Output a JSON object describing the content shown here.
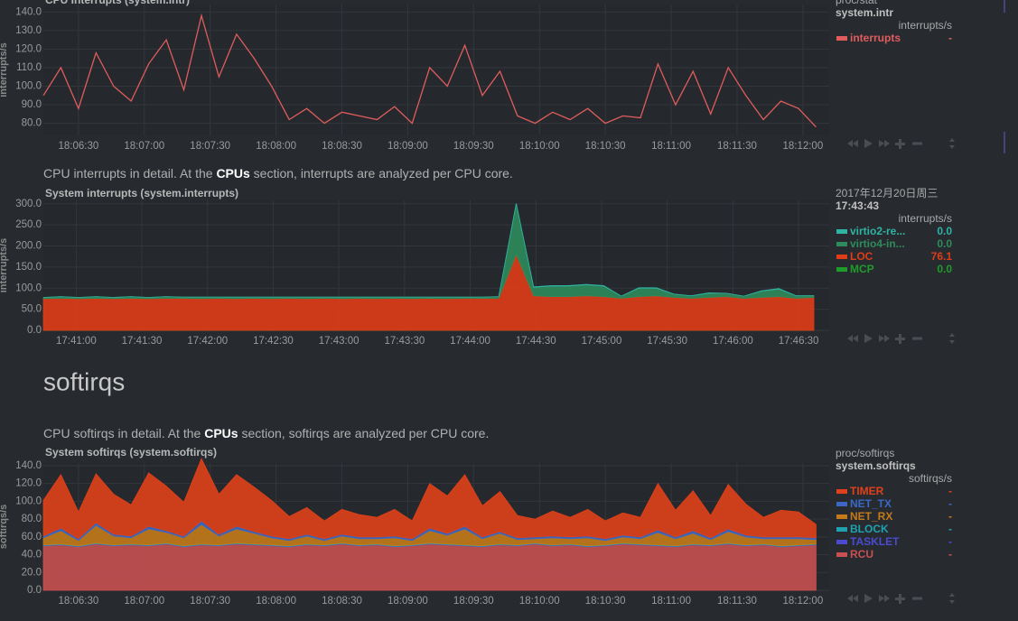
{
  "section_heading": "softirqs",
  "chart_data": [
    {
      "type": "line",
      "title": "CPU Interrupts (system.intr)",
      "ylabel": "interrupts/s",
      "source": "proc/stat",
      "chart_id": "system.intr",
      "units": "interrupts/s",
      "grid": true,
      "x": [
        "18:06:14",
        "18:06:22",
        "18:06:30",
        "18:06:38",
        "18:06:46",
        "18:06:54",
        "18:07:02",
        "18:07:10",
        "18:07:18",
        "18:07:26",
        "18:07:34",
        "18:07:42",
        "18:07:50",
        "18:07:58",
        "18:08:06",
        "18:08:14",
        "18:08:22",
        "18:08:30",
        "18:08:38",
        "18:08:46",
        "18:08:54",
        "18:09:02",
        "18:09:10",
        "18:09:18",
        "18:09:26",
        "18:09:34",
        "18:09:42",
        "18:09:50",
        "18:09:58",
        "18:10:06",
        "18:10:14",
        "18:10:22",
        "18:10:30",
        "18:10:38",
        "18:10:46",
        "18:10:54",
        "18:11:02",
        "18:11:10",
        "18:11:18",
        "18:11:26",
        "18:11:34",
        "18:11:42",
        "18:11:50",
        "18:11:58",
        "18:12:06"
      ],
      "xlim": [
        "18:06:14",
        "18:12:12"
      ],
      "xticks": [
        "18:06:30",
        "18:07:00",
        "18:07:30",
        "18:08:00",
        "18:08:30",
        "18:09:00",
        "18:09:30",
        "18:10:00",
        "18:10:30",
        "18:11:00",
        "18:11:30",
        "18:12:00"
      ],
      "ylim": [
        73.5,
        144
      ],
      "yticks": [
        {
          "value": 80,
          "label": "80.0"
        },
        {
          "value": 90,
          "label": "90.0"
        },
        {
          "value": 100,
          "label": "100.0"
        },
        {
          "value": 110,
          "label": "110.0"
        },
        {
          "value": 120,
          "label": "120.0"
        },
        {
          "value": 130,
          "label": "130.0"
        },
        {
          "value": 140,
          "label": "140.0"
        }
      ],
      "series": [
        {
          "name": "interrupts",
          "color": "#e05c5c",
          "legend_value": "-",
          "values": [
            95,
            110,
            88,
            118,
            100,
            92,
            112,
            125,
            98,
            138,
            105,
            128,
            115,
            100,
            82,
            88,
            80,
            86,
            84,
            82,
            89,
            80,
            110,
            100,
            122,
            95,
            108,
            84,
            80,
            86,
            82,
            88,
            80,
            84,
            83,
            112,
            90,
            108,
            85,
            110,
            95,
            82,
            92,
            88,
            78
          ]
        }
      ]
    },
    {
      "type": "area",
      "stacked": true,
      "title": "System interrupts (system.interrupts)",
      "ylabel": "interrupts/s",
      "desc_before": "CPU interrupts in detail. At the ",
      "desc_link": "CPUs",
      "desc_after": " section, interrupts are analyzed per CPU core.",
      "date": "2017年12月20日周三",
      "time": "17:43:43",
      "units": "interrupts/s",
      "grid": true,
      "x": [
        "17:40:45",
        "17:40:53",
        "17:41:01",
        "17:41:09",
        "17:41:17",
        "17:41:25",
        "17:41:33",
        "17:41:41",
        "17:41:49",
        "17:41:57",
        "17:42:05",
        "17:42:13",
        "17:42:21",
        "17:42:29",
        "17:42:37",
        "17:42:45",
        "17:42:53",
        "17:43:01",
        "17:43:09",
        "17:43:17",
        "17:43:25",
        "17:43:33",
        "17:43:41",
        "17:43:49",
        "17:43:57",
        "17:44:05",
        "17:44:13",
        "17:44:21",
        "17:44:29",
        "17:44:37",
        "17:44:45",
        "17:44:53",
        "17:45:01",
        "17:45:09",
        "17:45:17",
        "17:45:25",
        "17:45:33",
        "17:45:41",
        "17:45:49",
        "17:45:57",
        "17:46:05",
        "17:46:13",
        "17:46:21",
        "17:46:29",
        "17:46:37"
      ],
      "xlim": [
        "17:40:45",
        "17:46:44"
      ],
      "xticks": [
        "17:41:00",
        "17:41:30",
        "17:42:00",
        "17:42:30",
        "17:43:00",
        "17:43:30",
        "17:44:00",
        "17:44:30",
        "17:45:00",
        "17:45:30",
        "17:46:00",
        "17:46:30"
      ],
      "ylim": [
        0,
        308
      ],
      "yticks": [
        {
          "value": 0,
          "label": "0.0"
        },
        {
          "value": 50,
          "label": "50.0"
        },
        {
          "value": 100,
          "label": "100.0"
        },
        {
          "value": 150,
          "label": "150.0"
        },
        {
          "value": 200,
          "label": "200.0"
        },
        {
          "value": 250,
          "label": "250.0"
        },
        {
          "value": 300,
          "label": "300.0"
        }
      ],
      "series": [
        {
          "name": "virtio2-re...",
          "color": "#2fb3a3",
          "legend_value": "0.0",
          "values": [
            0,
            0,
            0,
            0,
            0,
            0,
            0,
            0,
            0,
            0,
            0,
            0,
            0,
            0,
            0,
            0,
            0,
            0,
            0,
            0,
            0,
            0,
            0,
            0,
            0,
            0,
            0,
            1,
            1,
            1,
            1,
            1,
            1,
            0,
            1,
            1,
            0,
            0,
            1,
            0,
            0,
            1,
            1,
            0,
            0
          ]
        },
        {
          "name": "virtio4-in...",
          "color": "#2e8b5c",
          "legend_value": "0.0",
          "values": [
            3,
            4,
            3,
            4,
            3,
            4,
            3,
            4,
            3,
            4,
            3,
            4,
            3,
            4,
            3,
            4,
            3,
            4,
            3,
            4,
            3,
            4,
            3,
            4,
            3,
            3,
            4,
            120,
            20,
            25,
            25,
            26,
            25,
            5,
            20,
            18,
            8,
            6,
            10,
            8,
            5,
            15,
            18,
            6,
            4
          ]
        },
        {
          "name": "LOC",
          "color": "#e03c18",
          "legend_value": "76.1",
          "values": [
            75,
            76,
            75,
            76,
            75,
            76,
            75,
            76,
            76,
            75,
            76,
            75,
            76,
            75,
            76,
            75,
            76,
            75,
            76,
            75,
            76,
            75,
            76,
            75,
            76,
            76,
            76,
            180,
            82,
            80,
            80,
            82,
            80,
            76,
            80,
            82,
            78,
            76,
            78,
            80,
            76,
            78,
            80,
            76,
            78
          ]
        },
        {
          "name": "MCP",
          "color": "#1f9b2a",
          "legend_value": "0.0",
          "values": [
            0,
            0,
            0,
            0,
            0,
            0,
            0,
            0,
            0,
            0,
            0,
            0,
            0,
            0,
            0,
            0,
            0,
            0,
            0,
            0,
            0,
            0,
            0,
            0,
            0,
            0,
            0,
            0,
            0,
            0,
            0,
            0,
            0,
            0,
            0,
            0,
            0,
            0,
            0,
            0,
            0,
            0,
            0,
            0,
            0
          ]
        }
      ]
    },
    {
      "type": "area",
      "stacked": true,
      "title": "System softirqs (system.softirqs)",
      "ylabel": "softirqs/s",
      "desc_before": "CPU softirqs in detail. At the ",
      "desc_link": "CPUs",
      "desc_after": " section, softirqs are analyzed per CPU core.",
      "source": "proc/softirqs",
      "chart_id": "system.softirqs",
      "units": "softirqs/s",
      "grid": true,
      "x": [
        "18:06:14",
        "18:06:22",
        "18:06:30",
        "18:06:38",
        "18:06:46",
        "18:06:54",
        "18:07:02",
        "18:07:10",
        "18:07:18",
        "18:07:26",
        "18:07:34",
        "18:07:42",
        "18:07:50",
        "18:07:58",
        "18:08:06",
        "18:08:14",
        "18:08:22",
        "18:08:30",
        "18:08:38",
        "18:08:46",
        "18:08:54",
        "18:09:02",
        "18:09:10",
        "18:09:18",
        "18:09:26",
        "18:09:34",
        "18:09:42",
        "18:09:50",
        "18:09:58",
        "18:10:06",
        "18:10:14",
        "18:10:22",
        "18:10:30",
        "18:10:38",
        "18:10:46",
        "18:10:54",
        "18:11:02",
        "18:11:10",
        "18:11:18",
        "18:11:26",
        "18:11:34",
        "18:11:42",
        "18:11:50",
        "18:11:58",
        "18:12:06"
      ],
      "xlim": [
        "18:06:14",
        "18:12:12"
      ],
      "xticks": [
        "18:06:30",
        "18:07:00",
        "18:07:30",
        "18:08:00",
        "18:08:30",
        "18:09:00",
        "18:09:30",
        "18:10:00",
        "18:10:30",
        "18:11:00",
        "18:11:30",
        "18:12:00"
      ],
      "ylim": [
        0,
        143
      ],
      "yticks": [
        {
          "value": 0,
          "label": "0.0"
        },
        {
          "value": 20,
          "label": "20.0"
        },
        {
          "value": 40,
          "label": "40.0"
        },
        {
          "value": 60,
          "label": "60.0"
        },
        {
          "value": 80,
          "label": "80.0"
        },
        {
          "value": 100,
          "label": "100.0"
        },
        {
          "value": 120,
          "label": "120.0"
        },
        {
          "value": 140,
          "label": "140.0"
        }
      ],
      "series": [
        {
          "name": "TIMER",
          "color": "#e0401a",
          "legend_value": "-",
          "values": [
            40,
            60,
            30,
            55,
            45,
            35,
            60,
            50,
            38,
            70,
            45,
            58,
            50,
            40,
            25,
            30,
            20,
            28,
            25,
            22,
            30,
            20,
            50,
            42,
            58,
            35,
            45,
            25,
            20,
            28,
            22,
            30,
            20,
            25,
            22,
            52,
            30,
            45,
            25,
            50,
            35,
            22,
            30,
            28,
            15
          ]
        },
        {
          "name": "NET_TX",
          "color": "#3b68c4",
          "legend_value": "-",
          "values": [
            2,
            3,
            2,
            3,
            2,
            2,
            3,
            2,
            2,
            4,
            2,
            3,
            2,
            2,
            2,
            2,
            2,
            2,
            2,
            2,
            2,
            2,
            3,
            2,
            3,
            2,
            2,
            2,
            2,
            2,
            2,
            2,
            2,
            2,
            2,
            3,
            2,
            3,
            2,
            3,
            2,
            2,
            2,
            2,
            2
          ]
        },
        {
          "name": "NET_RX",
          "color": "#c47a1a",
          "legend_value": "-",
          "values": [
            8,
            15,
            6,
            20,
            10,
            7,
            18,
            12,
            9,
            22,
            10,
            16,
            12,
            8,
            6,
            9,
            5,
            8,
            7,
            6,
            9,
            5,
            14,
            10,
            18,
            8,
            12,
            6,
            5,
            8,
            6,
            9,
            5,
            7,
            6,
            14,
            8,
            12,
            6,
            13,
            9,
            6,
            8,
            7,
            5
          ]
        },
        {
          "name": "BLOCK",
          "color": "#1ea2b0",
          "legend_value": "-",
          "values": [
            0.6,
            0.6,
            0.6,
            0.6,
            0.6,
            0.6,
            0.6,
            0.6,
            0.6,
            0.6,
            0.6,
            0.6,
            0.6,
            0.6,
            0.6,
            0.6,
            0.6,
            0.6,
            0.6,
            0.6,
            0.6,
            0.6,
            0.6,
            0.6,
            0.6,
            0.6,
            0.6,
            0.6,
            0.6,
            0.6,
            0.6,
            0.6,
            0.6,
            0.6,
            0.6,
            0.6,
            0.6,
            0.6,
            0.6,
            0.6,
            0.6,
            0.6,
            0.6,
            0.6,
            0.6
          ]
        },
        {
          "name": "TASKLET",
          "color": "#4b4bd0",
          "legend_value": "-",
          "values": [
            0.4,
            0.4,
            0.4,
            0.4,
            0.4,
            0.4,
            0.4,
            0.4,
            0.4,
            0.4,
            0.4,
            0.4,
            0.4,
            0.4,
            0.4,
            0.4,
            0.4,
            0.4,
            0.4,
            0.4,
            0.4,
            0.4,
            0.4,
            0.4,
            0.4,
            0.4,
            0.4,
            0.4,
            0.4,
            0.4,
            0.4,
            0.4,
            0.4,
            0.4,
            0.4,
            0.4,
            0.4,
            0.4,
            0.4,
            0.4,
            0.4,
            0.4,
            0.4,
            0.4,
            0.4
          ]
        },
        {
          "name": "RCU",
          "color": "#c85050",
          "legend_value": "-",
          "values": [
            50,
            51,
            49,
            52,
            50,
            51,
            50,
            52,
            49,
            51,
            50,
            52,
            51,
            50,
            49,
            51,
            50,
            52,
            50,
            51,
            49,
            50,
            52,
            51,
            50,
            49,
            51,
            50,
            52,
            50,
            51,
            49,
            50,
            52,
            51,
            50,
            49,
            51,
            50,
            52,
            50,
            51,
            49,
            50,
            51
          ]
        }
      ]
    }
  ]
}
